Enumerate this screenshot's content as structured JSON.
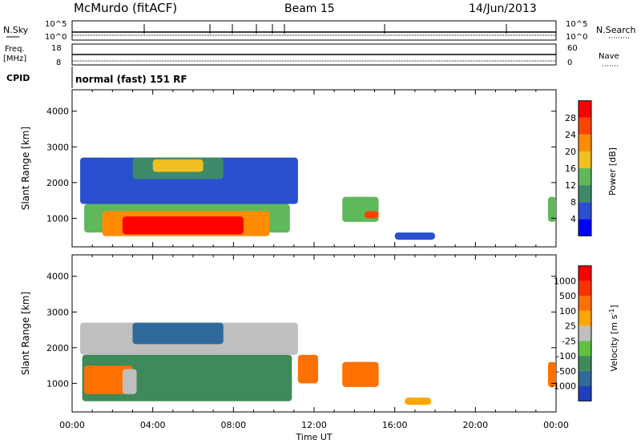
{
  "header": {
    "station": "McMurdo (fitACF)",
    "beam": "Beam 15",
    "date": "14/Jun/2013"
  },
  "params": {
    "nsky_label": "N.Sky",
    "nsky_ticks": [
      "10^5",
      "10^0"
    ],
    "nsearch_label": "N.Search",
    "nsearch_ticks": [
      "10^5",
      "10^0"
    ],
    "freq_label": "Freq.",
    "freq_unit": "[MHz]",
    "freq_ticks": [
      "18",
      "8"
    ],
    "nave_label": "Nave",
    "nave_ticks": [
      "60",
      "0"
    ],
    "cpid_label": "CPID",
    "cpid_value": "normal (fast) 151 RF"
  },
  "chart_data": [
    {
      "type": "heatmap",
      "ylabel": "Slant Range [km]",
      "xlabel": "Time UT",
      "x_ticks": [
        "00:00",
        "04:00",
        "08:00",
        "12:00",
        "16:00",
        "20:00",
        "00:00"
      ],
      "xlim_hours": [
        0,
        24
      ],
      "y_ticks": [
        "1000",
        "2000",
        "3000",
        "4000"
      ],
      "ylim": [
        200,
        4600
      ],
      "colorbar_label": "Power [dB]",
      "colorbar_ticks": [
        "4",
        "8",
        "12",
        "16",
        "20",
        "24",
        "28"
      ],
      "colorbar_colors": [
        "#0000ff",
        "#2a4fcf",
        "#3d8a6a",
        "#5fb85a",
        "#f0c020",
        "#ff8c00",
        "#ff4400",
        "#ff0000"
      ],
      "echo_regions": [
        {
          "t": [
            0.4,
            11.2
          ],
          "r": [
            1400,
            2700
          ],
          "level": 1
        },
        {
          "t": [
            0.6,
            10.8
          ],
          "r": [
            600,
            1400
          ],
          "level": 3
        },
        {
          "t": [
            1.5,
            9.8
          ],
          "r": [
            500,
            1200
          ],
          "level": 5
        },
        {
          "t": [
            2.5,
            8.5
          ],
          "r": [
            550,
            1050
          ],
          "level": 7
        },
        {
          "t": [
            3.0,
            7.5
          ],
          "r": [
            2100,
            2700
          ],
          "level": 2
        },
        {
          "t": [
            4.0,
            6.5
          ],
          "r": [
            2300,
            2650
          ],
          "level": 4
        },
        {
          "t": [
            13.4,
            15.2
          ],
          "r": [
            900,
            1600
          ],
          "level": 3
        },
        {
          "t": [
            14.5,
            15.2
          ],
          "r": [
            1000,
            1200
          ],
          "level": 6
        },
        {
          "t": [
            23.6,
            24.0
          ],
          "r": [
            900,
            1600
          ],
          "level": 3
        },
        {
          "t": [
            16.0,
            18.0
          ],
          "r": [
            400,
            600
          ],
          "level": 1
        }
      ]
    },
    {
      "type": "heatmap",
      "ylabel": "Slant Range [km]",
      "xlabel": "Time UT",
      "x_ticks": [
        "00:00",
        "04:00",
        "08:00",
        "12:00",
        "16:00",
        "20:00",
        "00:00"
      ],
      "xlim_hours": [
        0,
        24
      ],
      "y_ticks": [
        "1000",
        "2000",
        "3000",
        "4000"
      ],
      "ylim": [
        200,
        4600
      ],
      "colorbar_label": "Velocity [m s^-1]",
      "colorbar_ticks": [
        "1000",
        "500",
        "100",
        "25",
        "-25",
        "-100",
        "-500",
        "-1000"
      ],
      "colorbar_colors": [
        "#1f3fbf",
        "#2f6a9a",
        "#3f8a5a",
        "#60c040",
        "#bfbfbf",
        "#ffa500",
        "#ff7000",
        "#ff3000",
        "#ff0000"
      ],
      "echo_regions": [
        {
          "t": [
            0.4,
            11.2
          ],
          "r": [
            1800,
            2700
          ],
          "level": 4
        },
        {
          "t": [
            0.5,
            10.9
          ],
          "r": [
            500,
            1800
          ],
          "level": 2
        },
        {
          "t": [
            0.6,
            3.0
          ],
          "r": [
            700,
            1500
          ],
          "level": 6
        },
        {
          "t": [
            2.5,
            3.2
          ],
          "r": [
            700,
            1400
          ],
          "level": 4
        },
        {
          "t": [
            3.0,
            7.5
          ],
          "r": [
            2100,
            2700
          ],
          "level": 1
        },
        {
          "t": [
            11.2,
            12.2
          ],
          "r": [
            1000,
            1800
          ],
          "level": 6
        },
        {
          "t": [
            13.4,
            15.2
          ],
          "r": [
            900,
            1600
          ],
          "level": 6
        },
        {
          "t": [
            16.5,
            17.8
          ],
          "r": [
            400,
            600
          ],
          "level": 5
        },
        {
          "t": [
            23.6,
            24.0
          ],
          "r": [
            900,
            1600
          ],
          "level": 6
        }
      ]
    }
  ]
}
